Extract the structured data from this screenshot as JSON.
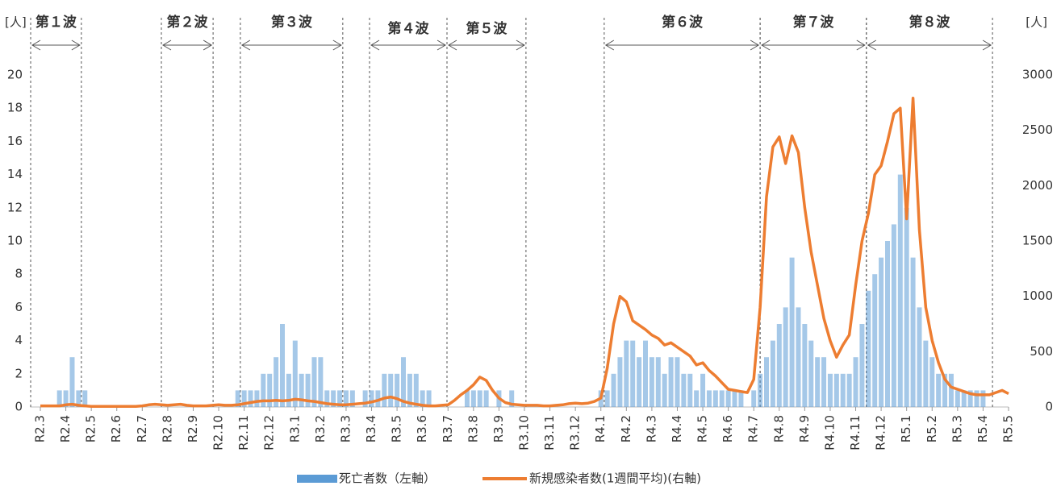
{
  "chart_data": {
    "type": "bar_line",
    "y_unit_label": "[人]",
    "y2_unit_label": "[人]",
    "xlim": [
      -0.4,
      38
    ],
    "xticks": [
      {
        "value": 0,
        "label": "R2.3"
      },
      {
        "value": 1,
        "label": "R2.4"
      },
      {
        "value": 2,
        "label": "R2.5"
      },
      {
        "value": 3,
        "label": "R2.6"
      },
      {
        "value": 4,
        "label": "R2.7"
      },
      {
        "value": 5,
        "label": "R2.8"
      },
      {
        "value": 6,
        "label": "R2.9"
      },
      {
        "value": 7,
        "label": "R2.10"
      },
      {
        "value": 8,
        "label": "R2.11"
      },
      {
        "value": 9,
        "label": "R2.12"
      },
      {
        "value": 10,
        "label": "R3.1"
      },
      {
        "value": 11,
        "label": "R3.2"
      },
      {
        "value": 12,
        "label": "R3.3"
      },
      {
        "value": 13,
        "label": "R3.4"
      },
      {
        "value": 14,
        "label": "R3.5"
      },
      {
        "value": 15,
        "label": "R3.6"
      },
      {
        "value": 16,
        "label": "R3.7"
      },
      {
        "value": 17,
        "label": "R3.8"
      },
      {
        "value": 18,
        "label": "R3.9"
      },
      {
        "value": 19,
        "label": "R3.10"
      },
      {
        "value": 20,
        "label": "R3.11"
      },
      {
        "value": 21,
        "label": "R3.12"
      },
      {
        "value": 22,
        "label": "R4.1"
      },
      {
        "value": 23,
        "label": "R4.2"
      },
      {
        "value": 24,
        "label": "R4.3"
      },
      {
        "value": 25,
        "label": "R4.4"
      },
      {
        "value": 26,
        "label": "R4.5"
      },
      {
        "value": 27,
        "label": "R4.6"
      },
      {
        "value": 28,
        "label": "R4.7"
      },
      {
        "value": 29,
        "label": "R4.8"
      },
      {
        "value": 30,
        "label": "R4.9"
      },
      {
        "value": 31,
        "label": "R4.10"
      },
      {
        "value": 32,
        "label": "R4.11"
      },
      {
        "value": 33,
        "label": "R4.12"
      },
      {
        "value": 34,
        "label": "R5.1"
      },
      {
        "value": 35,
        "label": "R5.2"
      },
      {
        "value": 36,
        "label": "R5.3"
      },
      {
        "value": 37,
        "label": "R5.4"
      },
      {
        "value": 38,
        "label": "R5.5"
      }
    ],
    "ylim": [
      0,
      20
    ],
    "yticks": [
      0,
      2,
      4,
      6,
      8,
      10,
      12,
      14,
      16,
      18,
      20
    ],
    "y2lim": [
      0,
      3000
    ],
    "y2ticks": [
      0,
      500,
      1000,
      1500,
      2000,
      2500,
      3000
    ],
    "waves": [
      {
        "label": "第１波",
        "start": -0.38,
        "end": 1.61
      },
      {
        "label": "第２波",
        "start": 4.75,
        "end": 6.78
      },
      {
        "label": "第３波",
        "start": 7.85,
        "end": 11.87
      },
      {
        "label": "第４波",
        "start": 12.92,
        "end": 15.96
      },
      {
        "label": "第５波",
        "start": 15.96,
        "end": 19.06
      },
      {
        "label": "第６波",
        "start": 22.13,
        "end": 28.25
      },
      {
        "label": "第７波",
        "start": 28.25,
        "end": 32.42
      },
      {
        "label": "第８波",
        "start": 32.42,
        "end": 37.37
      }
    ],
    "x": [
      0,
      0.25,
      0.5,
      0.75,
      1,
      1.25,
      1.5,
      1.75,
      2,
      2.25,
      2.5,
      2.75,
      3,
      3.25,
      3.5,
      3.75,
      4,
      4.25,
      4.5,
      4.75,
      5,
      5.25,
      5.5,
      5.75,
      6,
      6.25,
      6.5,
      6.75,
      7,
      7.25,
      7.5,
      7.75,
      8,
      8.25,
      8.5,
      8.75,
      9,
      9.25,
      9.5,
      9.75,
      10,
      10.25,
      10.5,
      10.75,
      11,
      11.25,
      11.5,
      11.75,
      12,
      12.25,
      12.5,
      12.75,
      13,
      13.25,
      13.5,
      13.75,
      14,
      14.25,
      14.5,
      14.75,
      15,
      15.25,
      15.5,
      15.75,
      16,
      16.25,
      16.5,
      16.75,
      17,
      17.25,
      17.5,
      17.75,
      18,
      18.25,
      18.5,
      18.75,
      19,
      19.25,
      19.5,
      19.75,
      20,
      20.25,
      20.5,
      20.75,
      21,
      21.25,
      21.5,
      21.75,
      22,
      22.25,
      22.5,
      22.75,
      23,
      23.25,
      23.5,
      23.75,
      24,
      24.25,
      24.5,
      24.75,
      25,
      25.25,
      25.5,
      25.75,
      26,
      26.25,
      26.5,
      26.75,
      27,
      27.25,
      27.5,
      27.75,
      28,
      28.25,
      28.5,
      28.75,
      29,
      29.25,
      29.5,
      29.75,
      30,
      30.25,
      30.5,
      30.75,
      31,
      31.25,
      31.5,
      31.75,
      32,
      32.25,
      32.5,
      32.75,
      33,
      33.25,
      33.5,
      33.75,
      34,
      34.25,
      34.5,
      34.75,
      35,
      35.25,
      35.5,
      35.75,
      36,
      36.25,
      36.5,
      36.75,
      37,
      37.25,
      37.5,
      37.75,
      38
    ],
    "series": [
      {
        "name": "死亡者数（左軸）",
        "color": "#5b9bd5",
        "type": "bar",
        "values": [
          0,
          0,
          0,
          1,
          1,
          3,
          1,
          1,
          0,
          0,
          0,
          0,
          0,
          0,
          0,
          0,
          0,
          0,
          0,
          0,
          0,
          0,
          0,
          0,
          0,
          0,
          0,
          0,
          0,
          0,
          0,
          1,
          1,
          1,
          1,
          2,
          2,
          3,
          5,
          2,
          4,
          2,
          2,
          3,
          3,
          1,
          1,
          1,
          1,
          1,
          0,
          1,
          1,
          1,
          2,
          2,
          2,
          3,
          2,
          2,
          1,
          1,
          0,
          0,
          0,
          0,
          0,
          1,
          1,
          1,
          1,
          0,
          1,
          0,
          1,
          0,
          0,
          0,
          0,
          0,
          0,
          0,
          0,
          0,
          0,
          0,
          0,
          0,
          1,
          1,
          2,
          3,
          4,
          4,
          3,
          4,
          3,
          3,
          2,
          3,
          3,
          2,
          2,
          1,
          2,
          1,
          1,
          1,
          1,
          1,
          1,
          0,
          1,
          2,
          3,
          4,
          5,
          6,
          9,
          6,
          5,
          4,
          3,
          3,
          2,
          2,
          2,
          2,
          3,
          5,
          7,
          8,
          9,
          10,
          11,
          14,
          12,
          9,
          6,
          4,
          3,
          2,
          2,
          2,
          1,
          1,
          1,
          1,
          1,
          0,
          0,
          0,
          0
        ]
      },
      {
        "name": "新規感染者数(1週間平均)(右軸)",
        "color": "#ed7d31",
        "type": "line",
        "axis": "y2",
        "values": [
          10,
          10,
          10,
          10,
          20,
          25,
          15,
          10,
          5,
          5,
          5,
          5,
          5,
          5,
          5,
          5,
          10,
          20,
          25,
          20,
          15,
          20,
          25,
          15,
          10,
          10,
          10,
          15,
          20,
          15,
          15,
          20,
          30,
          40,
          50,
          55,
          55,
          60,
          55,
          60,
          70,
          65,
          55,
          50,
          40,
          30,
          25,
          20,
          20,
          25,
          30,
          35,
          45,
          60,
          80,
          90,
          75,
          50,
          35,
          25,
          15,
          10,
          10,
          15,
          20,
          60,
          110,
          150,
          200,
          270,
          240,
          150,
          80,
          40,
          25,
          20,
          15,
          15,
          15,
          10,
          10,
          15,
          20,
          30,
          35,
          30,
          35,
          50,
          80,
          350,
          750,
          1000,
          950,
          780,
          740,
          700,
          650,
          620,
          560,
          580,
          540,
          500,
          460,
          380,
          400,
          330,
          280,
          220,
          160,
          150,
          140,
          130,
          250,
          900,
          1900,
          2350,
          2440,
          2200,
          2450,
          2300,
          1800,
          1400,
          1100,
          800,
          600,
          450,
          560,
          650,
          1100,
          1500,
          1750,
          2100,
          2180,
          2400,
          2650,
          2700,
          1700,
          2790,
          1600,
          900,
          600,
          400,
          250,
          180,
          160,
          140,
          120,
          110,
          110,
          110,
          130,
          150,
          120
        ]
      }
    ]
  }
}
